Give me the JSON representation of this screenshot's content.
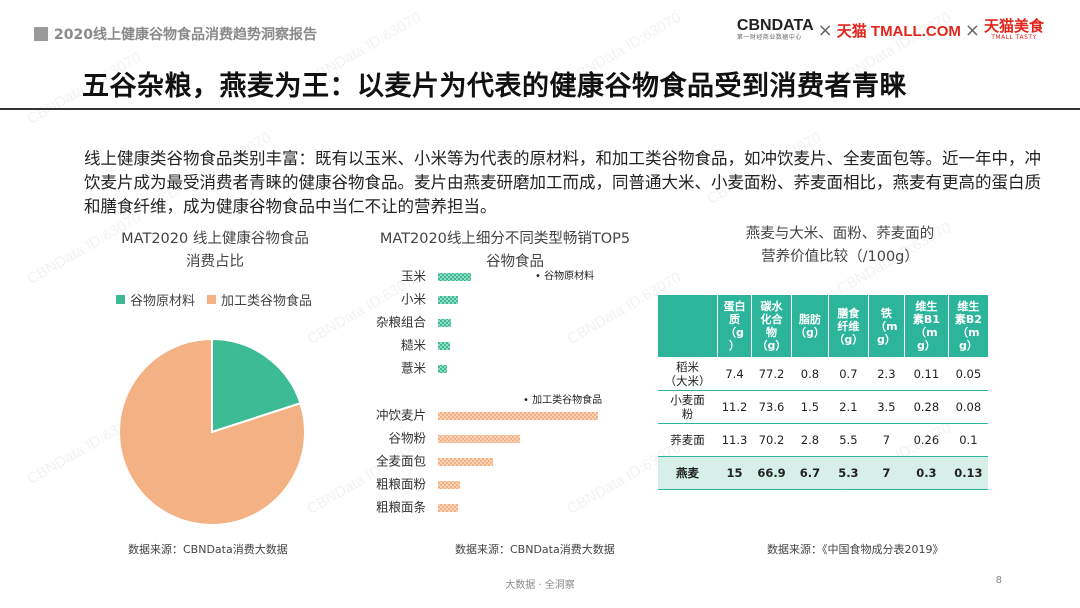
{
  "header": {
    "report_title": "2020线上健康谷物食品消费趋势洞察报告",
    "logo_cbn": "CBNDATA",
    "logo_cbn_sub": "第一财经商业数据中心",
    "logo_x": "×",
    "logo_tmall": "天猫 TMALL.COM",
    "logo_food": "天猫美食",
    "logo_food_sub": "TMALL TASTY"
  },
  "title": "五谷杂粮，燕麦为王：以麦片为代表的健康谷物食品受到消费者青睐",
  "intro": "线上健康类谷物食品类别丰富：既有以玉米、小米等为代表的原材料，和加工类谷物食品，如冲饮麦片、全麦面包等。近一年中，冲饮麦片成为最受消费者青睐的健康谷物食品。麦片由燕麦研磨加工而成，同普通大米、小麦面粉、荞麦面相比，燕麦有更高的蛋白质和膳食纤维，成为健康谷物食品中当仁不让的营养担当。",
  "watermark": "CBNData ID:63070",
  "colors": {
    "raw": "#3dbb94",
    "processed": "#f4b183",
    "table_header": "#2db59b",
    "highlight": "#d6f0e9"
  },
  "chart_data": [
    {
      "type": "pie",
      "title_line1": "MAT2020 线上健康谷物食品",
      "title_line2": "消费占比",
      "legend": [
        "谷物原材料",
        "加工类谷物食品"
      ],
      "legend_placement": "top",
      "values": [
        0.2,
        0.8
      ],
      "source": "数据来源：CBNData消费大数据"
    },
    {
      "type": "bar",
      "orientation": "horizontal",
      "title_line1": "MAT2020线上细分不同类型畅销TOP5",
      "title_line2": "谷物食品",
      "groups": [
        {
          "label": "谷物原材料",
          "categories": [
            "玉米",
            "小米",
            "杂粮组合",
            "糙米",
            "薏米"
          ],
          "values": [
            33,
            20,
            13,
            12,
            9
          ]
        },
        {
          "label": "加工类谷物食品",
          "categories": [
            "冲饮麦片",
            "谷物粉",
            "全麦面包",
            "粗粮面粉",
            "粗粮面条"
          ],
          "values": [
            160,
            82,
            55,
            22,
            20
          ]
        }
      ],
      "source": "数据来源：CBNData消费大数据"
    },
    {
      "type": "table",
      "title_line1": "燕麦与大米、面粉、荞麦面的",
      "title_line2": "营养价值比较（/100g）",
      "columns": [
        "",
        "蛋白质（g）",
        "碳水化合物（g）",
        "脂肪（g）",
        "膳食纤维（g）",
        "铁（mg）",
        "维生素B1（mg）",
        "维生素B2（mg）"
      ],
      "header_lines": [
        [
          ""
        ],
        [
          "蛋白",
          "质",
          "（g",
          "）"
        ],
        [
          "碳水",
          "化合",
          "物",
          "（g）"
        ],
        [
          "脂肪",
          "（g）"
        ],
        [
          "膳食",
          "纤维",
          "（g）"
        ],
        [
          "铁",
          "（m",
          "g）"
        ],
        [
          "维生",
          "素B1",
          "（m",
          "g）"
        ],
        [
          "维生",
          "素B2",
          "（m",
          "g）"
        ]
      ],
      "rows": [
        {
          "name_lines": [
            "稻米",
            "（大米）"
          ],
          "values": [
            "7.4",
            "77.2",
            "0.8",
            "0.7",
            "2.3",
            "0.11",
            "0.05"
          ],
          "highlight": false
        },
        {
          "name_lines": [
            "小麦面",
            "粉"
          ],
          "values": [
            "11.2",
            "73.6",
            "1.5",
            "2.1",
            "3.5",
            "0.28",
            "0.08"
          ],
          "highlight": false
        },
        {
          "name_lines": [
            "荞麦面"
          ],
          "values": [
            "11.3",
            "70.2",
            "2.8",
            "5.5",
            "7",
            "0.26",
            "0.1"
          ],
          "highlight": false
        },
        {
          "name_lines": [
            "燕麦"
          ],
          "values": [
            "15",
            "66.9",
            "6.7",
            "5.3",
            "7",
            "0.3",
            "0.13"
          ],
          "highlight": true
        }
      ],
      "source": "数据来源：《中国食物成分表2019》"
    }
  ],
  "footer": {
    "text": "大数据 · 全洞察",
    "page": "8"
  }
}
